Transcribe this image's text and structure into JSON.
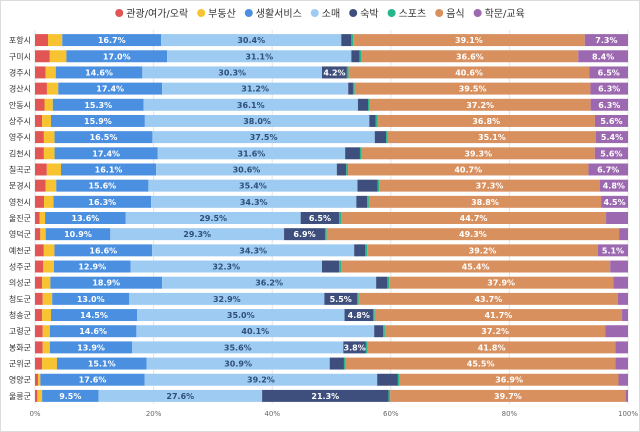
{
  "chart_data": {
    "type": "bar",
    "orientation": "horizontal",
    "stacked": true,
    "normalized": true,
    "legend_position": "top",
    "grid": true,
    "xlim": [
      0,
      100
    ],
    "x_ticks": [
      "0%",
      "20%",
      "40%",
      "60%",
      "80%",
      "100%"
    ],
    "categories": [
      "포항시",
      "구미시",
      "경주시",
      "경산시",
      "안동시",
      "상주시",
      "영주시",
      "김천시",
      "칠곡군",
      "문경시",
      "영천시",
      "울진군",
      "영덕군",
      "예천군",
      "성주군",
      "의성군",
      "청도군",
      "청송군",
      "고령군",
      "봉화군",
      "군위군",
      "영양군",
      "울릉군"
    ],
    "series": [
      {
        "name": "관광/여가/오락",
        "color": "#e15554",
        "values": [
          2.2,
          2.5,
          1.8,
          2.0,
          1.6,
          1.2,
          1.5,
          1.5,
          2.0,
          1.8,
          1.5,
          0.8,
          0.9,
          1.5,
          1.4,
          1.2,
          1.3,
          1.2,
          1.3,
          1.3,
          1.2,
          0.5,
          0.4
        ],
        "labels": []
      },
      {
        "name": "부동산",
        "color": "#f7c331",
        "values": [
          2.4,
          2.8,
          1.7,
          1.9,
          1.4,
          1.5,
          1.8,
          1.8,
          2.4,
          1.8,
          1.6,
          0.9,
          0.9,
          1.8,
          1.8,
          1.4,
          1.6,
          1.5,
          1.2,
          1.2,
          2.5,
          0.4,
          0.8
        ],
        "labels": []
      },
      {
        "name": "생활서비스",
        "color": "#4a8fe0",
        "values": [
          16.7,
          17.0,
          14.6,
          17.4,
          15.3,
          15.9,
          16.5,
          17.4,
          16.1,
          15.6,
          16.3,
          13.6,
          10.9,
          16.6,
          12.9,
          18.9,
          13.0,
          14.5,
          14.6,
          13.9,
          15.1,
          17.6,
          9.5
        ],
        "labels": [
          "16.7%",
          "17.0%",
          "14.6%",
          "17.4%",
          "15.3%",
          "15.9%",
          "16.5%",
          "17.4%",
          "16.1%",
          "15.6%",
          "16.3%",
          "13.6%",
          "10.9%",
          "16.6%",
          "12.9%",
          "18.9%",
          "13.0%",
          "14.5%",
          "14.6%",
          "13.9%",
          "15.1%",
          "17.6%",
          "9.5%"
        ]
      },
      {
        "name": "소매",
        "color": "#9dcbf2",
        "values": [
          30.4,
          31.1,
          30.3,
          31.2,
          36.1,
          38.0,
          37.5,
          31.6,
          30.6,
          35.4,
          34.3,
          29.5,
          29.3,
          34.3,
          32.3,
          36.2,
          32.9,
          35.0,
          40.1,
          35.6,
          30.9,
          39.2,
          27.6
        ],
        "labels": [
          "30.4%",
          "31.1%",
          "30.3%",
          "31.2%",
          "36.1%",
          "38.0%",
          "37.5%",
          "31.6%",
          "30.6%",
          "35.4%",
          "34.3%",
          "29.5%",
          "29.3%",
          "34.3%",
          "32.3%",
          "36.2%",
          "32.9%",
          "35.0%",
          "40.1%",
          "35.6%",
          "30.9%",
          "39.2%",
          "27.6%"
        ]
      },
      {
        "name": "숙박",
        "color": "#3f4f7d",
        "values": [
          1.7,
          1.4,
          4.2,
          0.8,
          1.7,
          1.1,
          1.9,
          2.5,
          1.6,
          3.4,
          1.8,
          6.5,
          6.9,
          1.9,
          2.9,
          1.9,
          5.5,
          4.8,
          1.5,
          3.8,
          2.4,
          3.5,
          21.3
        ],
        "labels": [
          "",
          "",
          "4.2%",
          "",
          "",
          "",
          "",
          "",
          "",
          "",
          "",
          "6.5%",
          "6.9%",
          "",
          "",
          "",
          "5.5%",
          "4.8%",
          "",
          "3.8%",
          "",
          "",
          "21.3%"
        ]
      },
      {
        "name": "스포츠",
        "color": "#27b58a",
        "values": [
          0.3,
          0.3,
          0.3,
          0.3,
          0.3,
          0.3,
          0.3,
          0.3,
          0.3,
          0.3,
          0.3,
          0.3,
          0.3,
          0.3,
          0.3,
          0.3,
          0.3,
          0.3,
          0.3,
          0.3,
          0.3,
          0.3,
          0.3
        ],
        "labels": []
      },
      {
        "name": "음식",
        "color": "#d9905f",
        "values": [
          39.1,
          36.6,
          40.6,
          39.5,
          37.2,
          36.8,
          35.1,
          39.3,
          40.7,
          37.3,
          38.8,
          44.7,
          49.3,
          39.2,
          45.4,
          37.9,
          43.7,
          41.7,
          37.2,
          41.8,
          45.5,
          36.9,
          39.7
        ],
        "labels": [
          "39.1%",
          "36.6%",
          "40.6%",
          "39.5%",
          "37.2%",
          "36.8%",
          "35.1%",
          "39.3%",
          "40.7%",
          "37.3%",
          "38.8%",
          "44.7%",
          "49.3%",
          "39.2%",
          "45.4%",
          "37.9%",
          "43.7%",
          "41.7%",
          "37.2%",
          "41.8%",
          "45.5%",
          "36.9%",
          "39.7%"
        ]
      },
      {
        "name": "학문/교육",
        "color": "#9c69b0",
        "values": [
          7.3,
          8.4,
          6.5,
          6.3,
          6.3,
          5.6,
          5.4,
          5.6,
          6.7,
          4.8,
          4.5,
          3.7,
          1.5,
          5.1,
          3.0,
          2.5,
          1.7,
          1.0,
          3.8,
          2.1,
          2.1,
          1.6,
          0.4
        ],
        "labels": [
          "7.3%",
          "8.4%",
          "6.5%",
          "6.3%",
          "6.3%",
          "5.6%",
          "5.4%",
          "5.6%",
          "6.7%",
          "4.8%",
          "4.5%",
          "",
          "",
          "5.1%",
          "",
          "",
          "",
          "",
          "",
          "",
          "",
          "",
          ""
        ]
      }
    ]
  }
}
